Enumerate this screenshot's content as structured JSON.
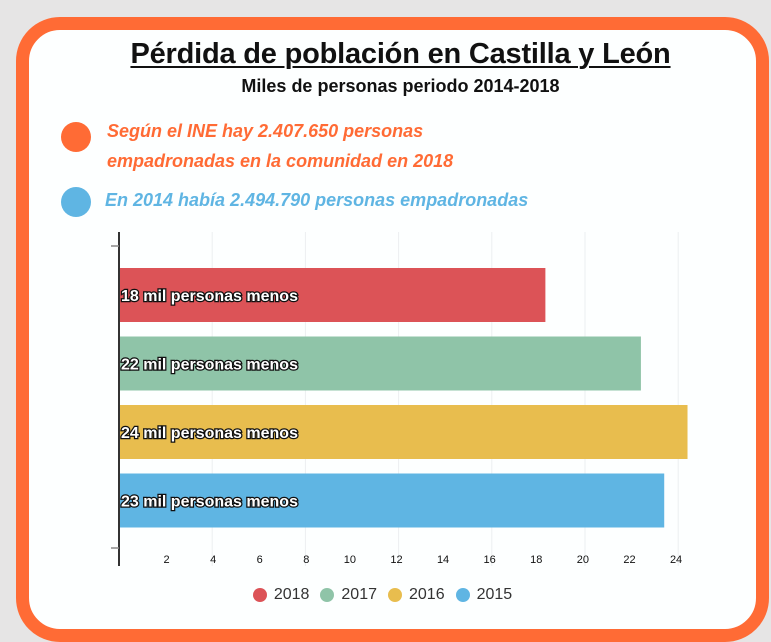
{
  "header": {
    "title": "Pérdida de población en Castilla y León",
    "subtitle": "Miles de personas periodo 2014-2018"
  },
  "notes": [
    {
      "line1": "Según el INE hay 2.407.650 personas",
      "line2": "empadronadas en la comunidad en 2018",
      "color": "#ff6b35",
      "icon": "orange-dot-icon"
    },
    {
      "line1": "En 2014 había 2.494.790 personas empadronadas",
      "color": "#5fb5e3",
      "icon": "blue-dot-icon"
    }
  ],
  "colors": {
    "frame": "#ff6b35",
    "background": "#fdffff"
  },
  "chart_data": {
    "type": "bar",
    "orientation": "horizontal",
    "title": "Pérdida de población en Castilla y León",
    "subtitle": "Miles de personas periodo 2014-2018",
    "xlabel": "",
    "ylabel": "",
    "xlim": [
      0,
      25
    ],
    "x_ticks": [
      2,
      4,
      6,
      8,
      10,
      12,
      14,
      16,
      18,
      20,
      22,
      24
    ],
    "grid": true,
    "legend_position": "bottom",
    "series": [
      {
        "name": "2018",
        "value": 18.3,
        "label": "18 mil personas menos",
        "color": "#dc5357"
      },
      {
        "name": "2017",
        "value": 22.4,
        "label": "22 mil personas menos",
        "color": "#8fc4a8"
      },
      {
        "name": "2016",
        "value": 24.4,
        "label": "24 mil personas menos",
        "color": "#e8bd4e"
      },
      {
        "name": "2015",
        "value": 23.4,
        "label": "23 mil personas menos",
        "color": "#5fb5e3"
      }
    ]
  }
}
